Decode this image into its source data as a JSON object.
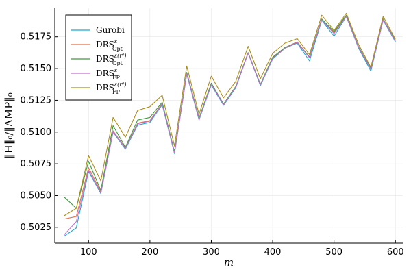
{
  "chart_data": {
    "type": "line",
    "title": "",
    "xlabel": "m",
    "ylabel": "‖H‖₀/‖AMP‖₀",
    "xlim": [
      45,
      612
    ],
    "ylim": [
      0.50125,
      0.51975
    ],
    "xticks": [
      100,
      200,
      300,
      400,
      500,
      600
    ],
    "yticks": [
      0.5025,
      0.505,
      0.5075,
      0.51,
      0.5125,
      0.515,
      0.5175
    ],
    "ytick_labels": [
      "0.5025",
      "0.5050",
      "0.5075",
      "0.5100",
      "0.5125",
      "0.5150",
      "0.5175"
    ],
    "grid": true,
    "legend_position": "top-left",
    "x": [
      60,
      80,
      100,
      120,
      140,
      160,
      180,
      200,
      220,
      240,
      260,
      280,
      300,
      320,
      340,
      360,
      380,
      400,
      420,
      440,
      460,
      480,
      500,
      520,
      540,
      560,
      580,
      600
    ],
    "series": [
      {
        "name": "Gurobi",
        "color": "#1fa7c9",
        "values": [
          0.5018,
          0.50245,
          0.5069,
          0.50515,
          0.51,
          0.50865,
          0.51055,
          0.51075,
          0.51215,
          0.5083,
          0.51455,
          0.51095,
          0.5137,
          0.5121,
          0.5135,
          0.5162,
          0.51365,
          0.51575,
          0.5166,
          0.517,
          0.5156,
          0.5188,
          0.51755,
          0.5191,
          0.5166,
          0.5148,
          0.5188,
          0.5171
        ]
      },
      {
        "name": "DRS",
        "sub": "Opt",
        "sup": "ε",
        "color": "#e26f46",
        "values": [
          0.50315,
          0.50335,
          0.5072,
          0.5053,
          0.5101,
          0.50875,
          0.5107,
          0.5109,
          0.51225,
          0.5084,
          0.51465,
          0.51105,
          0.5138,
          0.5122,
          0.5136,
          0.51625,
          0.51375,
          0.51585,
          0.51665,
          0.5171,
          0.5159,
          0.5189,
          0.5178,
          0.51915,
          0.5167,
          0.515,
          0.5189,
          0.5172
        ]
      },
      {
        "name": "DRS",
        "sub": "Opt",
        "sup": "ε(r⁰)",
        "color": "#3d9a3d",
        "values": [
          0.5049,
          0.504,
          0.5077,
          0.5054,
          0.5105,
          0.5088,
          0.51095,
          0.51115,
          0.51235,
          0.50845,
          0.5147,
          0.5111,
          0.51385,
          0.5122,
          0.5136,
          0.51625,
          0.51375,
          0.5159,
          0.51665,
          0.51705,
          0.5159,
          0.5189,
          0.5179,
          0.5192,
          0.5167,
          0.515,
          0.5189,
          0.5172
        ]
      },
      {
        "name": "DRS",
        "sub": "FP",
        "sup": "ε",
        "color": "#c271d2",
        "values": [
          0.5019,
          0.50295,
          0.507,
          0.5052,
          0.51005,
          0.5087,
          0.51065,
          0.51085,
          0.5122,
          0.50835,
          0.5146,
          0.511,
          0.51375,
          0.51215,
          0.51355,
          0.5162,
          0.5137,
          0.5158,
          0.5166,
          0.51705,
          0.51585,
          0.51885,
          0.51775,
          0.5191,
          0.51665,
          0.51495,
          0.51885,
          0.51715
        ]
      },
      {
        "name": "DRS",
        "sub": "FP",
        "sup": "ε(r⁰)",
        "color": "#ac8d18",
        "values": [
          0.5034,
          0.504,
          0.50815,
          0.50615,
          0.51115,
          0.5096,
          0.5117,
          0.512,
          0.5129,
          0.5089,
          0.5152,
          0.5114,
          0.5144,
          0.5127,
          0.514,
          0.51675,
          0.5142,
          0.5162,
          0.517,
          0.51735,
          0.5161,
          0.5192,
          0.518,
          0.51935,
          0.5169,
          0.5151,
          0.5191,
          0.5173
        ]
      }
    ]
  }
}
